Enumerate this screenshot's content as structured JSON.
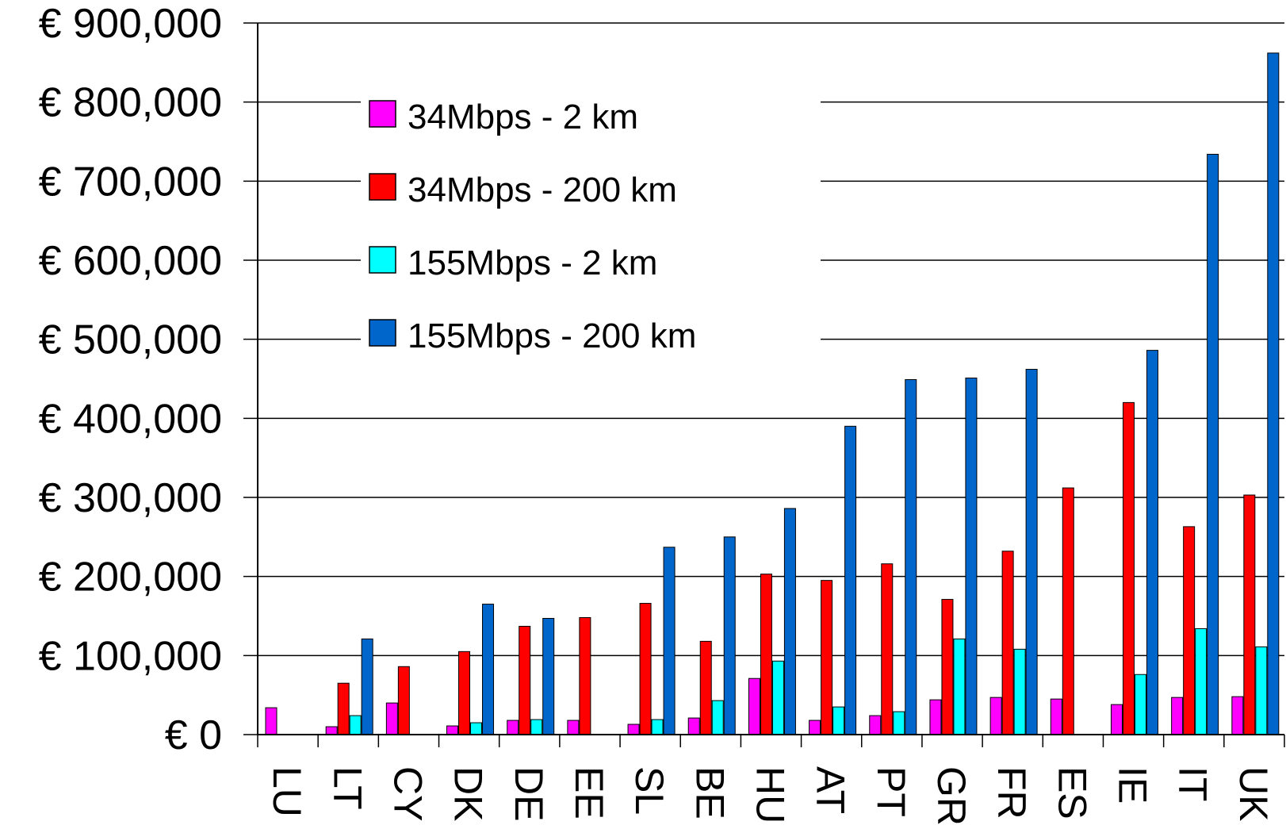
{
  "chart_data": {
    "type": "bar",
    "title": "",
    "xlabel": "",
    "ylabel": "",
    "ylim": [
      0,
      900000
    ],
    "yticks": [
      0,
      100000,
      200000,
      300000,
      400000,
      500000,
      600000,
      700000,
      800000,
      900000
    ],
    "ytick_labels": [
      "€ 0",
      "€ 100,000",
      "€ 200,000",
      "€ 300,000",
      "€ 400,000",
      "€ 500,000",
      "€ 600,000",
      "€ 700,000",
      "€ 800,000",
      "€ 900,000"
    ],
    "grid": true,
    "legend_position": "top-left",
    "categories": [
      "LU",
      "LT",
      "CY",
      "DK",
      "DE",
      "EE",
      "SL",
      "BE",
      "HU",
      "AT",
      "PT",
      "GR",
      "FR",
      "ES",
      "IE",
      "IT",
      "UK"
    ],
    "series": [
      {
        "name": "34Mbps - 2 km",
        "color": "#FF00FF",
        "values": [
          34000,
          10000,
          40000,
          11000,
          18000,
          18000,
          13000,
          21000,
          71000,
          18000,
          24000,
          44000,
          47000,
          45000,
          38000,
          47000,
          48000
        ]
      },
      {
        "name": "34Mbps - 200 km",
        "color": "#FF0000",
        "values": [
          null,
          65000,
          86000,
          105000,
          137000,
          148000,
          166000,
          118000,
          203000,
          195000,
          216000,
          171000,
          232000,
          312000,
          420000,
          263000,
          303000
        ]
      },
      {
        "name": "155Mbps - 2 km",
        "color": "#00FFFF",
        "values": [
          null,
          24000,
          null,
          15000,
          19000,
          null,
          19000,
          43000,
          93000,
          35000,
          29000,
          121000,
          108000,
          null,
          76000,
          134000,
          111000
        ]
      },
      {
        "name": "155Mbps - 200 km",
        "color": "#0066CC",
        "values": [
          null,
          121000,
          null,
          165000,
          147000,
          null,
          237000,
          250000,
          286000,
          390000,
          449000,
          451000,
          462000,
          null,
          486000,
          734000,
          862000
        ]
      }
    ]
  }
}
